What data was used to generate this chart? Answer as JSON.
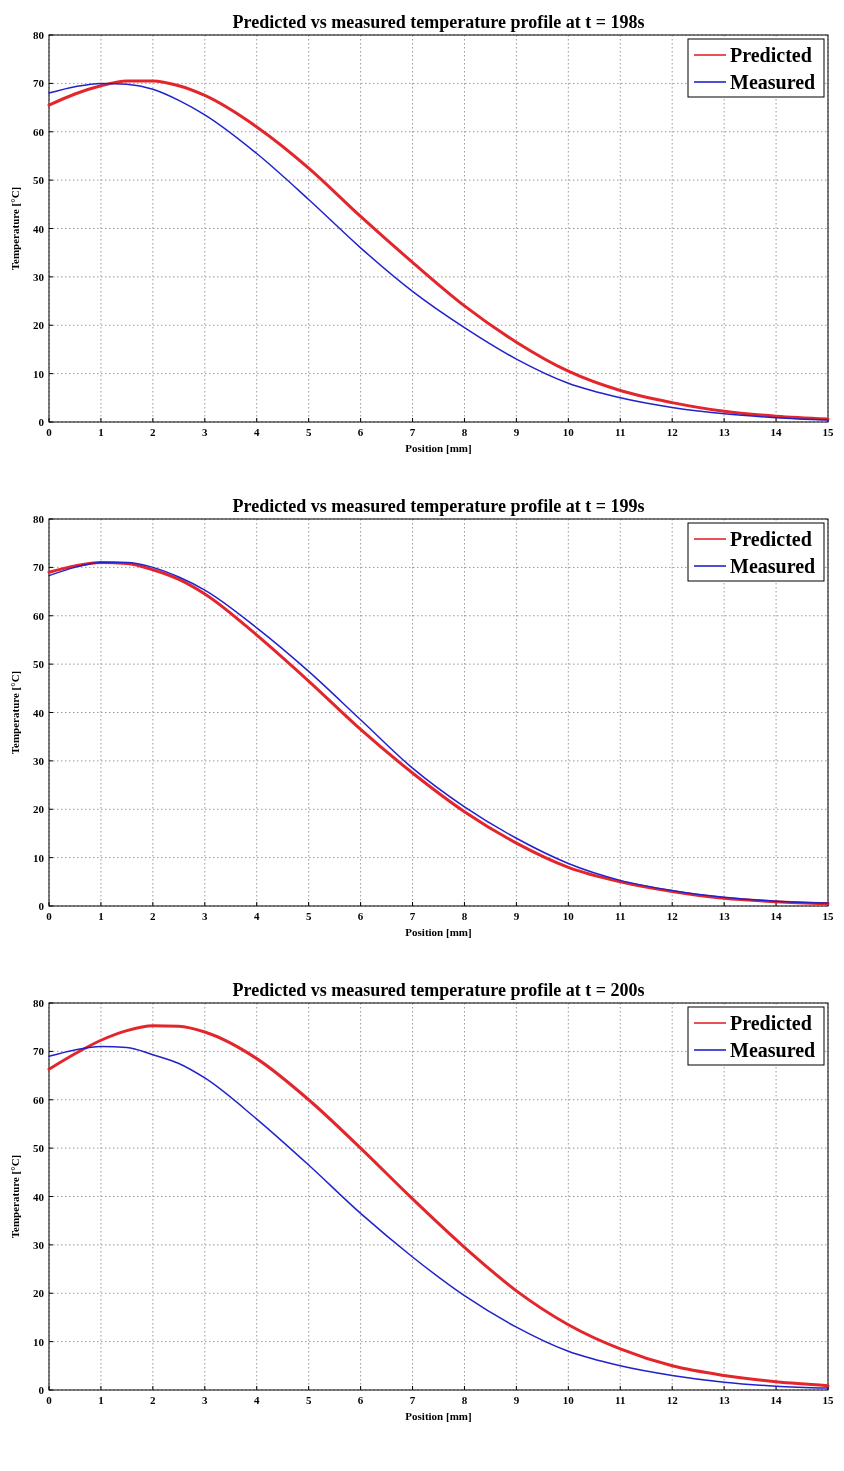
{
  "chart_data": [
    {
      "type": "line",
      "title": "Predicted vs measured temperature profile at t = 198s",
      "xlabel": "Position [mm]",
      "ylabel": "Temperature [°C]",
      "x": [
        0,
        0.5,
        1,
        1.5,
        2,
        2.5,
        3,
        4,
        5,
        6,
        7,
        8,
        9,
        10,
        11,
        12,
        13,
        14,
        15
      ],
      "xlim": [
        0,
        15
      ],
      "xticks": [
        0,
        1,
        2,
        3,
        4,
        5,
        6,
        7,
        8,
        9,
        10,
        11,
        12,
        13,
        14,
        15
      ],
      "ylim": [
        0,
        80
      ],
      "yticks": [
        0,
        10,
        20,
        30,
        40,
        50,
        60,
        70,
        80
      ],
      "grid": true,
      "legend": "top right",
      "marker": "none",
      "line_style": "solid",
      "series": [
        {
          "name": "Predicted",
          "color": "#e3262b",
          "values": [
            65.5,
            67.8,
            69.5,
            70.5,
            70.5,
            69.5,
            67.5,
            61,
            52.5,
            42.5,
            33,
            24,
            16.5,
            10.5,
            6.5,
            4,
            2.2,
            1.2,
            0.6
          ]
        },
        {
          "name": "Measured",
          "color": "#2222cc",
          "values": [
            68,
            69.3,
            70,
            69.8,
            68.8,
            66.5,
            63.5,
            55.5,
            46,
            36,
            27,
            19.5,
            13,
            8,
            5,
            3,
            1.7,
            0.9,
            0.4
          ]
        }
      ]
    },
    {
      "type": "line",
      "title": "Predicted vs measured temperature profile at t = 199s",
      "xlabel": "Position [mm]",
      "ylabel": "Temperature [°C]",
      "x": [
        0,
        0.5,
        1,
        1.5,
        2,
        2.5,
        3,
        4,
        5,
        6,
        7,
        8,
        9,
        10,
        11,
        12,
        13,
        14,
        15
      ],
      "xlim": [
        0,
        15
      ],
      "xticks": [
        0,
        1,
        2,
        3,
        4,
        5,
        6,
        7,
        8,
        9,
        10,
        11,
        12,
        13,
        14,
        15
      ],
      "ylim": [
        0,
        80
      ],
      "yticks": [
        0,
        10,
        20,
        30,
        40,
        50,
        60,
        70,
        80
      ],
      "grid": true,
      "legend": "top right",
      "marker": "none",
      "line_style": "solid",
      "series": [
        {
          "name": "Predicted",
          "color": "#e3262b",
          "values": [
            69,
            70.3,
            71,
            70.8,
            69.5,
            67.5,
            64.5,
            56,
            46.5,
            36.5,
            27.5,
            19.5,
            13,
            8,
            5,
            3,
            1.6,
            0.9,
            0.5
          ]
        },
        {
          "name": "Measured",
          "color": "#2222cc",
          "values": [
            68.3,
            70,
            71,
            71,
            70,
            68,
            65.3,
            57.5,
            48.5,
            38.5,
            28.5,
            20.5,
            14,
            8.8,
            5.3,
            3.2,
            1.8,
            1,
            0.6
          ]
        }
      ]
    },
    {
      "type": "line",
      "title": "Predicted vs measured temperature profile at t = 200s",
      "xlabel": "Position [mm]",
      "ylabel": "Temperature [°C]",
      "x": [
        0,
        0.5,
        1,
        1.5,
        2,
        2.5,
        3,
        4,
        5,
        6,
        7,
        8,
        9,
        10,
        11,
        12,
        13,
        14,
        15
      ],
      "xlim": [
        0,
        15
      ],
      "xticks": [
        0,
        1,
        2,
        3,
        4,
        5,
        6,
        7,
        8,
        9,
        10,
        11,
        12,
        13,
        14,
        15
      ],
      "ylim": [
        0,
        80
      ],
      "yticks": [
        0,
        10,
        20,
        30,
        40,
        50,
        60,
        70,
        80
      ],
      "grid": true,
      "legend": "top right",
      "marker": "none",
      "line_style": "solid",
      "series": [
        {
          "name": "Predicted",
          "color": "#e3262b",
          "values": [
            66.3,
            69.5,
            72.3,
            74.3,
            75.3,
            75.2,
            74,
            68.5,
            60,
            50,
            39.5,
            29.5,
            20.5,
            13.5,
            8.5,
            5,
            3,
            1.7,
            0.9
          ]
        },
        {
          "name": "Measured",
          "color": "#2222cc",
          "values": [
            69,
            70.3,
            71,
            70.8,
            69.3,
            67.5,
            64.5,
            56,
            46.5,
            36.5,
            27.5,
            19.5,
            13,
            8,
            5,
            3,
            1.6,
            0.8,
            0.4
          ]
        }
      ]
    }
  ]
}
